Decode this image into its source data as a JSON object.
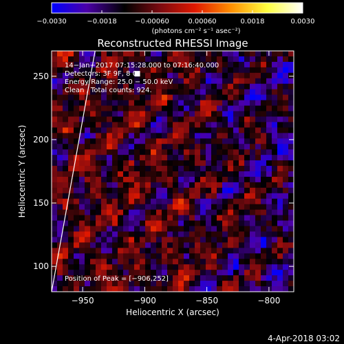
{
  "chart_data": {
    "type": "heatmap",
    "title": "Reconstructed RHESSI Image",
    "xlabel": "Heliocentric X (arcsec)",
    "ylabel": "Heliocentric Y (arcsec)",
    "xlim": [
      -975,
      -780
    ],
    "ylim": [
      80,
      270
    ],
    "xticks": [
      -950,
      -900,
      -850,
      -800
    ],
    "xtick_labels": [
      "−950",
      "−900",
      "−850",
      "−800"
    ],
    "yticks": [
      100,
      150,
      200,
      250
    ],
    "ytick_labels": [
      "100",
      "150",
      "200",
      "250"
    ],
    "colorbar": {
      "range": [
        -0.003,
        0.003
      ],
      "ticks": [
        -0.003,
        -0.0018,
        -0.0006,
        0.0006,
        0.0018,
        0.003
      ],
      "tick_labels": [
        "−0.0030",
        "−0.0018",
        "−0.00060",
        "0.00060",
        "0.0018",
        "0.0030"
      ],
      "label": "(photons cm⁻² s⁻¹ asec⁻²)",
      "colors": [
        "#0000ff",
        "#4b00a8",
        "#000000",
        "#7a0a10",
        "#e01800",
        "#ff8c00",
        "#ffff40",
        "#ffffff"
      ]
    },
    "annotations": [
      "14−Jan−2017 07:15:28.000 to 07:16:40.000",
      "Detectors: 3F 9F, 8 0",
      "Energy Range: 25.0 − 50.0 keV",
      "Clean ,  Total counts: 924.",
      "Position of Peak = [−906,252]"
    ],
    "peak": {
      "x": -906,
      "y": 252
    },
    "limb_line": {
      "x": [
        -975,
        -940
      ],
      "y": [
        80,
        270
      ]
    },
    "grid": false
  },
  "footer": {
    "date": "4-Apr-2018 03:02"
  }
}
